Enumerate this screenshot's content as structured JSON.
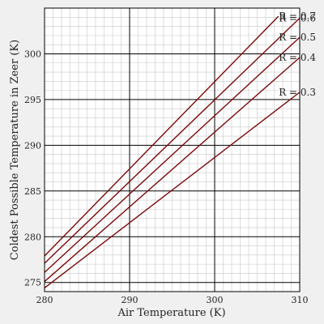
{
  "chart_data": {
    "type": "line",
    "title": "",
    "xlabel": "Air Temperature (K)",
    "ylabel": "Coldest Possible Temperature in Zeer (K)",
    "xlim": [
      280,
      310
    ],
    "ylim": [
      274,
      305
    ],
    "x_ticks": [
      280,
      290,
      300,
      310
    ],
    "y_ticks": [
      275,
      280,
      285,
      290,
      295,
      300
    ],
    "grid": true,
    "legend": "none",
    "line_color": "#7a0a0a",
    "grid_major_color": "#000000",
    "grid_minor_color": "#c8c8c8",
    "background": "#ffffff",
    "series": [
      {
        "name": "R = 0.7",
        "x": [
          280,
          307.5
        ],
        "y": [
          277.9,
          304.1
        ]
      },
      {
        "name": "R = 0.6",
        "x": [
          280,
          310
        ],
        "y": [
          277.1,
          303.9
        ]
      },
      {
        "name": "R = 0.5",
        "x": [
          280,
          310
        ],
        "y": [
          276.1,
          301.8
        ]
      },
      {
        "name": "R = 0.4",
        "x": [
          280,
          310
        ],
        "y": [
          275.1,
          299.6
        ]
      },
      {
        "name": "R = 0.3",
        "x": [
          280,
          310
        ],
        "y": [
          274.4,
          295.8
        ]
      }
    ]
  }
}
